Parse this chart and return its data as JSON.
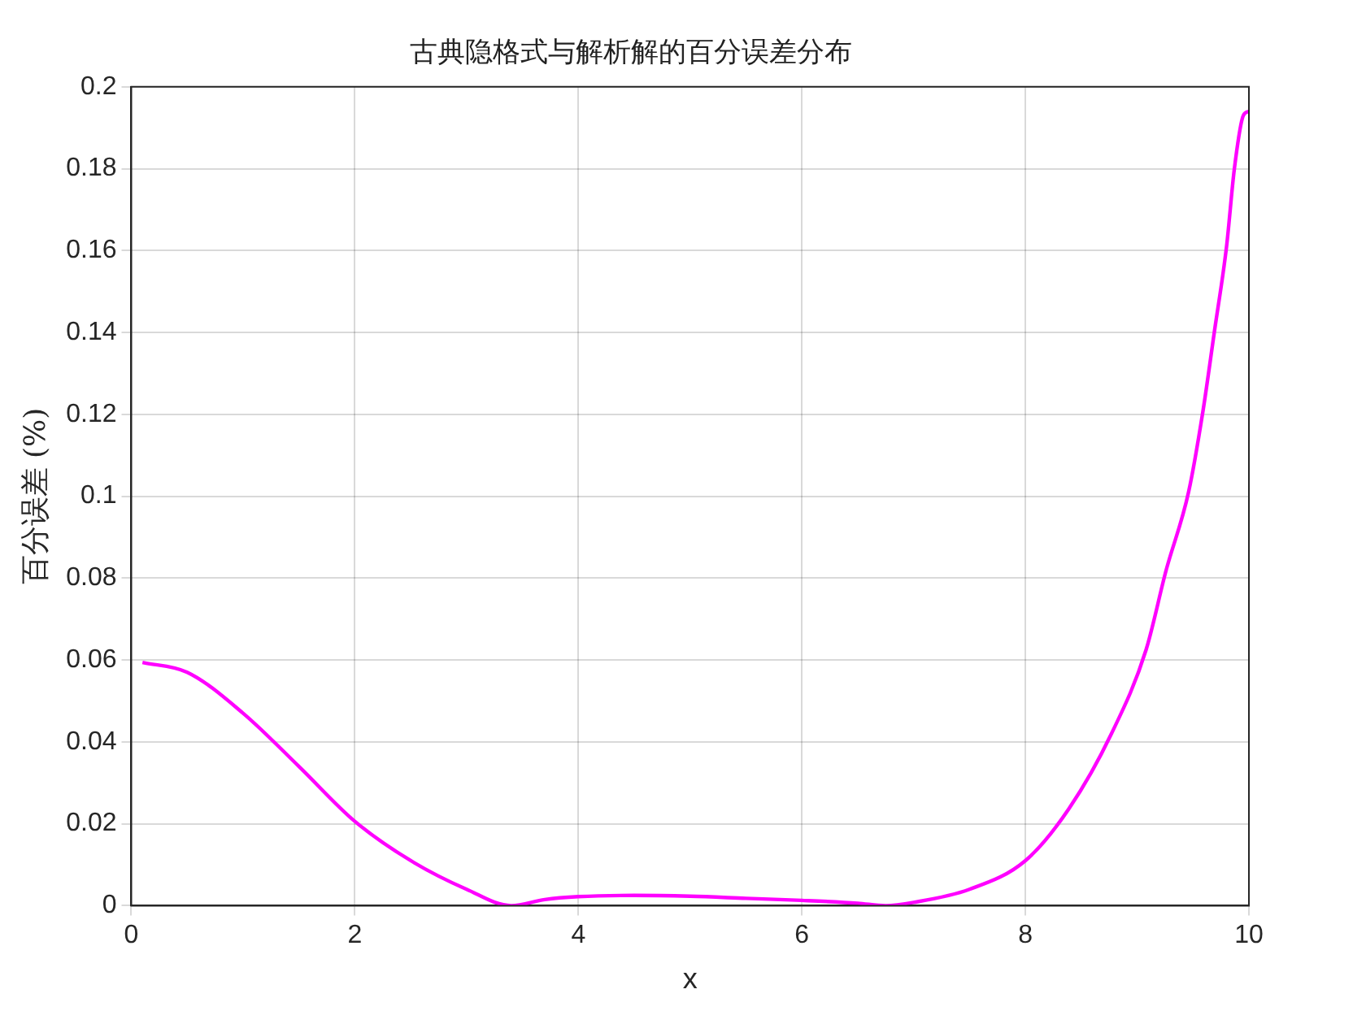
{
  "chart_data": {
    "type": "line",
    "title": "古典隐格式与解析解的百分误差分布",
    "xlabel": "x",
    "ylabel": "百分误差 (%)",
    "series": [
      {
        "color": "#ff00ff",
        "x": [
          0.1,
          0.5,
          1,
          1.5,
          2,
          2.5,
          3,
          3.4,
          3.7,
          4,
          4.5,
          5,
          5.5,
          6,
          6.5,
          6.75,
          7,
          7.5,
          8,
          8.39,
          8.77,
          9.08,
          9.26,
          9.46,
          9.59,
          9.69,
          9.8,
          9.87,
          9.95,
          10
        ],
        "values": [
          0.0594,
          0.057,
          0.047,
          0.034,
          0.0206,
          0.011,
          0.004,
          0,
          0.0015,
          0.0022,
          0.0025,
          0.0023,
          0.0018,
          0.0013,
          0.0006,
          0,
          0.0008,
          0.004,
          0.011,
          0.0237,
          0.042,
          0.0625,
          0.082,
          0.101,
          0.121,
          0.14,
          0.161,
          0.18,
          0.193,
          0.194
        ]
      }
    ],
    "xlim": [
      0,
      10
    ],
    "xticks": [
      0,
      2,
      4,
      6,
      8,
      10
    ],
    "ylim": [
      0,
      0.2
    ],
    "yticks": [
      0,
      0.02,
      0.04,
      0.06,
      0.08,
      0.1,
      0.12,
      0.14,
      0.16,
      0.18,
      0.2
    ],
    "grid": true,
    "legend": false,
    "marker": "none",
    "line_style": "solid"
  }
}
